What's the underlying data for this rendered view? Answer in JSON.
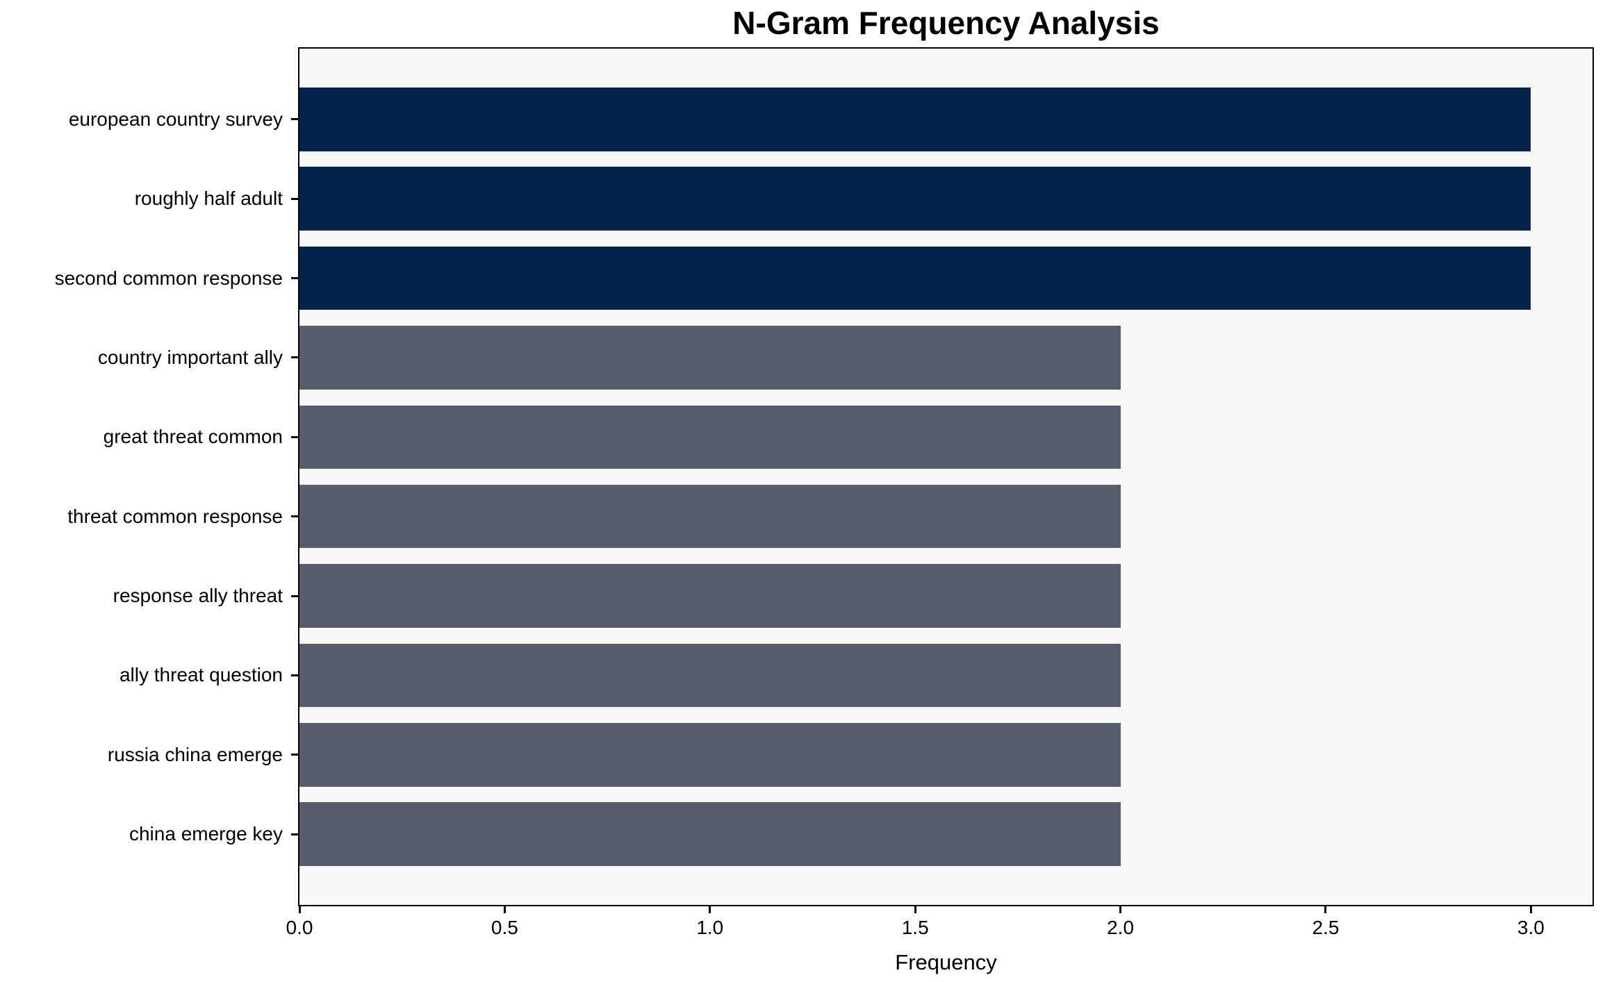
{
  "figure": {
    "background": "#ffffff",
    "plot_background": "#f7f7f5",
    "spine_color": "#000000"
  },
  "chart_data": {
    "type": "bar",
    "orientation": "horizontal",
    "title": "N-Gram Frequency Analysis",
    "xlabel": "Frequency",
    "ylabel": "",
    "categories": [
      "european country survey",
      "roughly half adult",
      "second common response",
      "country important ally",
      "great threat common",
      "threat common response",
      "response ally threat",
      "ally threat question",
      "russia china emerge",
      "china emerge key"
    ],
    "values": [
      3,
      3,
      3,
      2,
      2,
      2,
      2,
      2,
      2,
      2
    ],
    "bar_colors": [
      "#02234a",
      "#02234a",
      "#02234a",
      "#565d6c",
      "#565d6c",
      "#565d6c",
      "#565d6c",
      "#565d6c",
      "#565d6c",
      "#565d6c"
    ],
    "accent_colors": {
      "high_frequency": "#02234a",
      "low_frequency": "#565d6c"
    },
    "xlim": [
      0,
      3.15
    ],
    "x_ticks": [
      {
        "value": 0.0,
        "label": "0.0"
      },
      {
        "value": 0.5,
        "label": "0.5"
      },
      {
        "value": 1.0,
        "label": "1.0"
      },
      {
        "value": 1.5,
        "label": "1.5"
      },
      {
        "value": 2.0,
        "label": "2.0"
      },
      {
        "value": 2.5,
        "label": "2.5"
      },
      {
        "value": 3.0,
        "label": "3.0"
      }
    ],
    "grid": false,
    "legend": null
  }
}
